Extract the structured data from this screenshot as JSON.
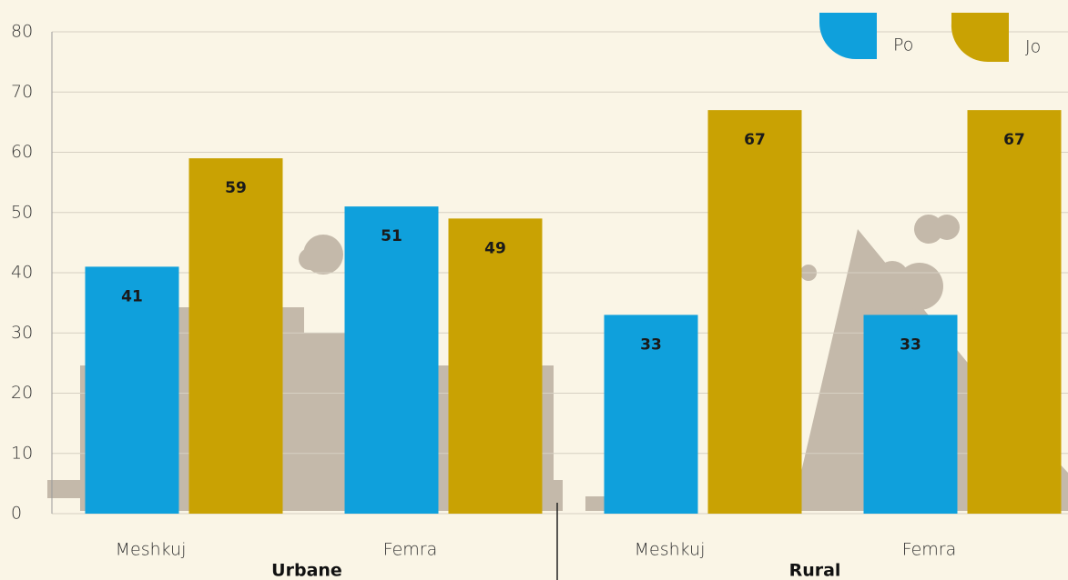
{
  "chart_data": {
    "type": "bar",
    "groups": [
      {
        "label": "Urbane",
        "categories": [
          "Meshkuj",
          "Femra"
        ]
      },
      {
        "label": "Rural",
        "categories": [
          "Meshkuj",
          "Femra"
        ]
      }
    ],
    "series": [
      {
        "name": "Po",
        "color": "#0fa0dc",
        "values": [
          41,
          51,
          33,
          33
        ]
      },
      {
        "name": "Jo",
        "color": "#c9a203",
        "values": [
          59,
          49,
          67,
          67
        ]
      }
    ],
    "ylim": [
      0,
      80
    ],
    "yticks": [
      0,
      10,
      20,
      30,
      40,
      50,
      60,
      70,
      80
    ],
    "grid": true
  }
}
